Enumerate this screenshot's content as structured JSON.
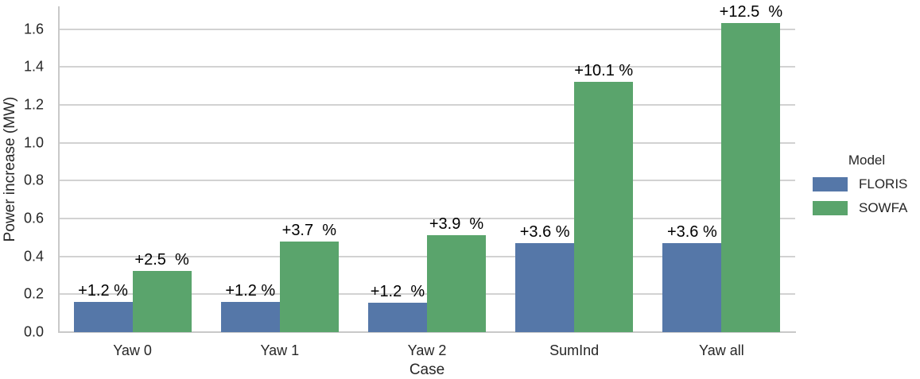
{
  "chart_data": {
    "type": "bar",
    "title": "",
    "xlabel": "Case",
    "ylabel": "Power increase (MW)",
    "categories": [
      "Yaw 0",
      "Yaw 1",
      "Yaw 2",
      "SumInd",
      "Yaw all"
    ],
    "series": [
      {
        "name": "FLORIS",
        "color": "#5577a8",
        "values": [
          0.16,
          0.16,
          0.156,
          0.47,
          0.47
        ],
        "bar_labels": [
          "+1.2 %",
          "+1.2 %",
          "+1.2  %",
          "+3.6 %",
          "+3.6 %"
        ]
      },
      {
        "name": "SOWFA",
        "color": "#5aa46c",
        "values": [
          0.325,
          0.48,
          0.51,
          1.32,
          1.63
        ],
        "bar_labels": [
          "+2.5  %",
          "+3.7  %",
          "+3.9  %",
          "+10.1 %",
          "+12.5  %"
        ]
      }
    ],
    "y_ticks": [
      "0.0",
      "0.2",
      "0.4",
      "0.6",
      "0.8",
      "1.0",
      "1.2",
      "1.4",
      "1.6"
    ],
    "ylim": [
      0,
      1.72
    ],
    "grid": true,
    "legend": {
      "title": "Model",
      "entries": [
        "FLORIS",
        "SOWFA"
      ],
      "position": "center-right"
    },
    "style": {
      "grid_color": "#d2d2d2",
      "axis_color": "#c9c9c9",
      "tick_text_color": "#262626",
      "annotation_color": "#000000",
      "background": "#ffffff"
    }
  }
}
